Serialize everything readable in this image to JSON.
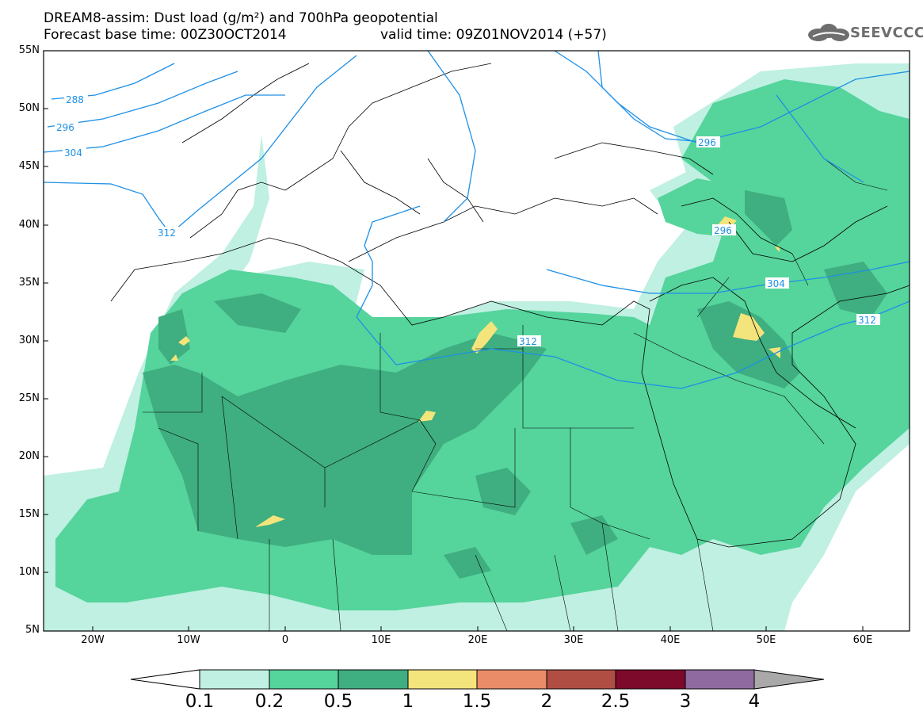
{
  "header": {
    "line1": "DREAM8-assim: Dust load (g/m²) and 700hPa geopotential",
    "line2a": "Forecast base time: 00Z30OCT2014",
    "line2b": "valid time: 09Z01NOV2014 (+57)",
    "logo_text": "SEEVCCC"
  },
  "axes": {
    "lat_labels": [
      "55N",
      "50N",
      "45N",
      "40N",
      "35N",
      "30N",
      "25N",
      "20N",
      "15N",
      "10N",
      "5N"
    ],
    "lon_labels": [
      "20W",
      "10W",
      "0",
      "10E",
      "20E",
      "30E",
      "40E",
      "50E",
      "60E"
    ]
  },
  "contours": {
    "labels": [
      "288",
      "296",
      "304",
      "312",
      "296",
      "304",
      "312",
      "312",
      "296"
    ]
  },
  "colorbar": {
    "ticks": [
      "0.1",
      "0.2",
      "0.5",
      "1",
      "1.5",
      "2",
      "2.5",
      "3",
      "4"
    ],
    "colors": [
      "#bff0e2",
      "#55d49c",
      "#3fae80",
      "#f4e47c",
      "#eb8c68",
      "#b04e44",
      "#7d0a2a",
      "#8f6aa0"
    ]
  },
  "palette": {
    "sea": "#ffffff",
    "light": "#bff0e2",
    "medium": "#55d49c",
    "dark": "#3fae80",
    "yellow": "#f4e47c",
    "contour": "#1e90e6"
  }
}
